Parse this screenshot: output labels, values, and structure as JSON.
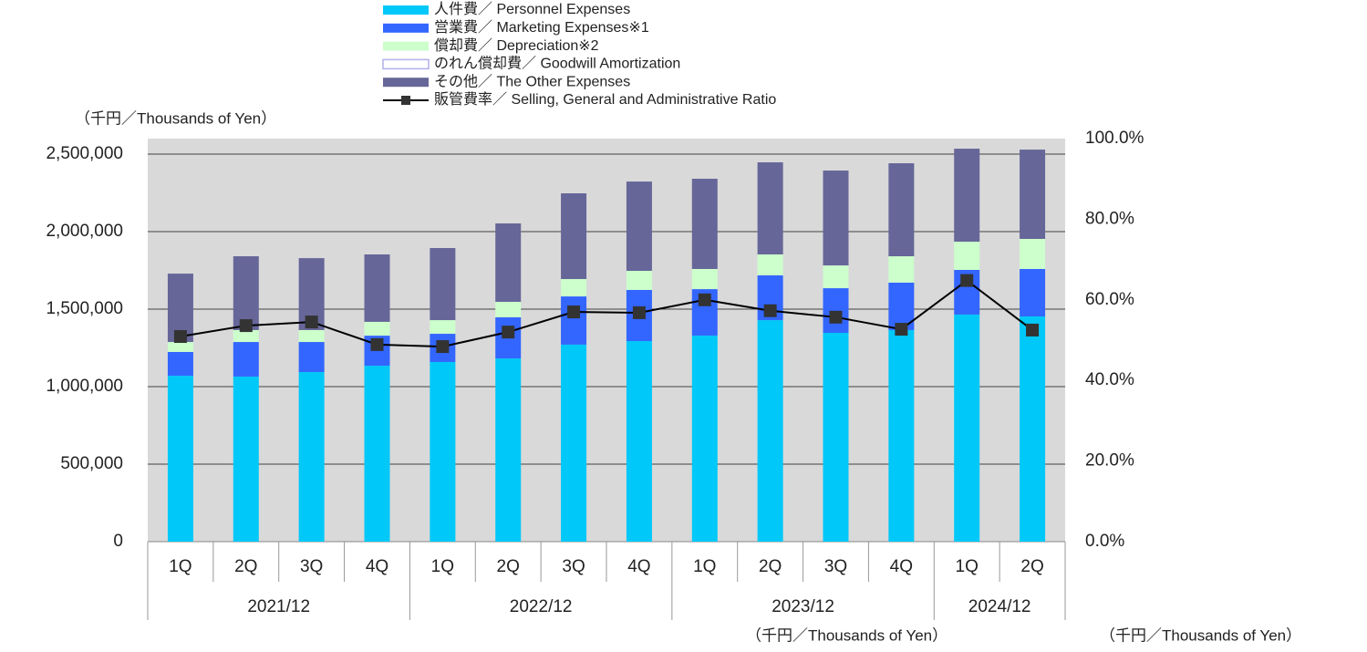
{
  "chart_data": {
    "type": "bar",
    "stacked": true,
    "y_axis_label": "（千円／Thousands of Yen）",
    "footnotes": [
      "（千円／Thousands of Yen）",
      "（千円／Thousands of Yen）"
    ],
    "groups": [
      {
        "label": "2021/12",
        "categories": [
          "1Q",
          "2Q",
          "3Q",
          "4Q"
        ]
      },
      {
        "label": "2022/12",
        "categories": [
          "1Q",
          "2Q",
          "3Q",
          "4Q"
        ]
      },
      {
        "label": "2023/12",
        "categories": [
          "1Q",
          "2Q",
          "3Q",
          "4Q"
        ]
      },
      {
        "label": "2024/12",
        "categories": [
          "1Q",
          "2Q"
        ]
      }
    ],
    "series": [
      {
        "name": "人件費／ Personnel Expenses",
        "type": "bar",
        "color": "#00c8f8",
        "values": [
          1070000,
          1065000,
          1094000,
          1135000,
          1159000,
          1182000,
          1271000,
          1294000,
          1329000,
          1429000,
          1347000,
          1365000,
          1465000,
          1453000
        ]
      },
      {
        "name": "営業費／ Marketing Expenses※1",
        "type": "bar",
        "color": "#3366ff",
        "values": [
          154000,
          223000,
          194000,
          194000,
          182000,
          265000,
          311000,
          330000,
          300000,
          289000,
          288000,
          306000,
          288000,
          306000
        ]
      },
      {
        "name": "償却費／ Depreciation※2",
        "type": "bar",
        "color": "#ccffcc",
        "values": [
          64000,
          77000,
          77000,
          89000,
          88000,
          100000,
          112000,
          123000,
          130000,
          135000,
          147000,
          170000,
          182000,
          194000
        ]
      },
      {
        "name": "のれん償却費／ Goodwill Amortization",
        "type": "bar",
        "color": "#ffffff",
        "border_color": "#b0b0e8",
        "values": [
          0,
          0,
          0,
          0,
          0,
          0,
          0,
          0,
          0,
          0,
          0,
          0,
          0,
          0
        ]
      },
      {
        "name": "その他／ The Other Expenses",
        "type": "bar",
        "color": "#666699",
        "values": [
          441000,
          476000,
          464000,
          435000,
          465000,
          506000,
          553000,
          576000,
          582000,
          594000,
          612000,
          600000,
          600000,
          576000
        ]
      },
      {
        "name": "販管費率／ Selling, General and Administrative Ratio",
        "type": "line",
        "axis": "y2",
        "color": "#000000",
        "marker_color": "#333333",
        "values": [
          50.9,
          53.6,
          54.5,
          48.9,
          48.4,
          52.0,
          57.0,
          56.8,
          60.0,
          57.3,
          55.7,
          52.7,
          64.8,
          52.5
        ]
      }
    ],
    "ylim": [
      0,
      2600000
    ],
    "yticks": [
      0,
      {
        "value": 500000,
        "label": "500,000"
      },
      {
        "value": 1000000,
        "label": "1,000,000"
      },
      {
        "value": 1500000,
        "label": "1,500,000"
      },
      {
        "value": 2000000,
        "label": "2,000,000"
      },
      {
        "value": 2500000,
        "label": "2,500,000"
      }
    ],
    "y2lim": [
      0,
      100
    ],
    "y2ticks": [
      {
        "value": 0,
        "label": "0.0%"
      },
      {
        "value": 20,
        "label": "20.0%"
      },
      {
        "value": 40,
        "label": "40.0%"
      },
      {
        "value": 60,
        "label": "60.0%"
      },
      {
        "value": 80,
        "label": "80.0%"
      },
      {
        "value": 100,
        "label": "100.0%"
      }
    ],
    "grid": true,
    "legend": "top"
  }
}
